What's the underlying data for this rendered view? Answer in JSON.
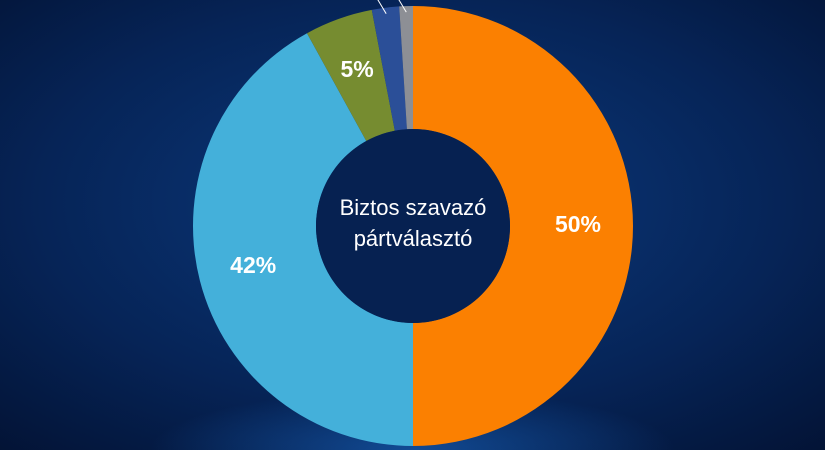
{
  "chart_data": {
    "type": "donut",
    "center_label": [
      "Biztos szavazó",
      "pártválasztó"
    ],
    "values": [
      50,
      42,
      5,
      2,
      1
    ],
    "value_labels": [
      "50%",
      "42%",
      "5%",
      null,
      null
    ],
    "colors": [
      "#fb8001",
      "#44b0da",
      "#768c30",
      "#2b4f98",
      "#8d8f95"
    ]
  }
}
